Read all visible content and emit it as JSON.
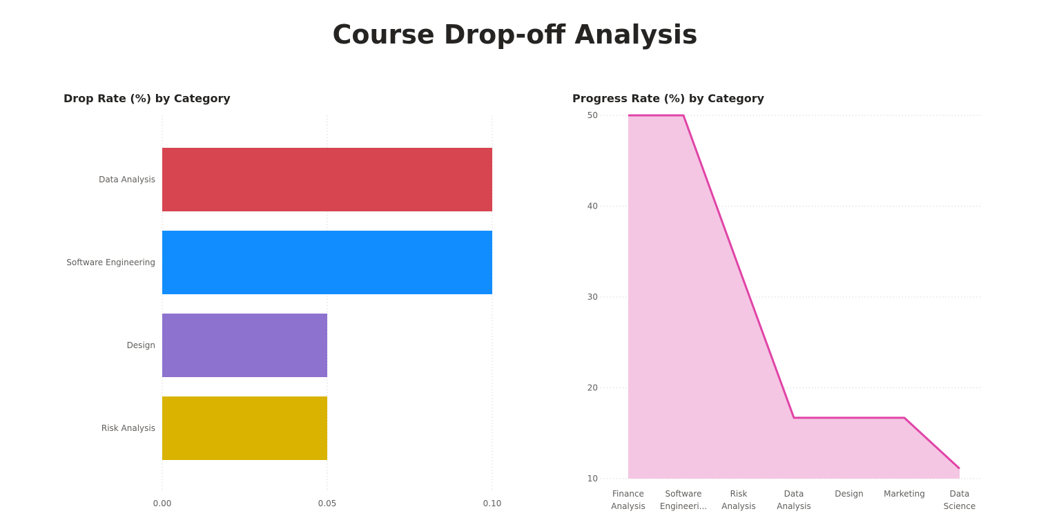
{
  "page_title": "Course Drop-off Analysis",
  "colors": {
    "data_analysis": "#d64550",
    "software_engineering": "#118dff",
    "design": "#8e72cf",
    "risk_analysis": "#d9b300",
    "progress_line": "#e044a7",
    "progress_fill": "#f4c6e3",
    "grid": "#d7d7d7"
  },
  "chart_data": [
    {
      "type": "bar",
      "orientation": "horizontal",
      "title": "Drop Rate (%) by Category",
      "xlabel": "",
      "ylabel": "",
      "categories": [
        "Data Analysis",
        "Software Engineering",
        "Design",
        "Risk Analysis"
      ],
      "values": [
        0.1,
        0.1,
        0.05,
        0.05
      ],
      "xlim": [
        0,
        0.1
      ],
      "xticks": [
        "0.00",
        "0.05",
        "0.10"
      ],
      "grid": "vertical dotted"
    },
    {
      "type": "area",
      "title": "Progress Rate (%) by Category",
      "xlabel": "",
      "ylabel": "",
      "categories": [
        [
          "Finance",
          "Analysis"
        ],
        [
          "Software",
          "Engineeri..."
        ],
        [
          "Risk",
          "Analysis"
        ],
        [
          "Data",
          "Analysis"
        ],
        [
          "Design"
        ],
        [
          "Marketing"
        ],
        [
          "Data",
          "Science"
        ]
      ],
      "values": [
        50,
        50,
        33.3,
        16.7,
        16.7,
        16.7,
        11.1
      ],
      "ylim": [
        10,
        50
      ],
      "yticks": [
        "10",
        "20",
        "30",
        "40",
        "50"
      ],
      "grid": "horizontal dotted"
    }
  ]
}
